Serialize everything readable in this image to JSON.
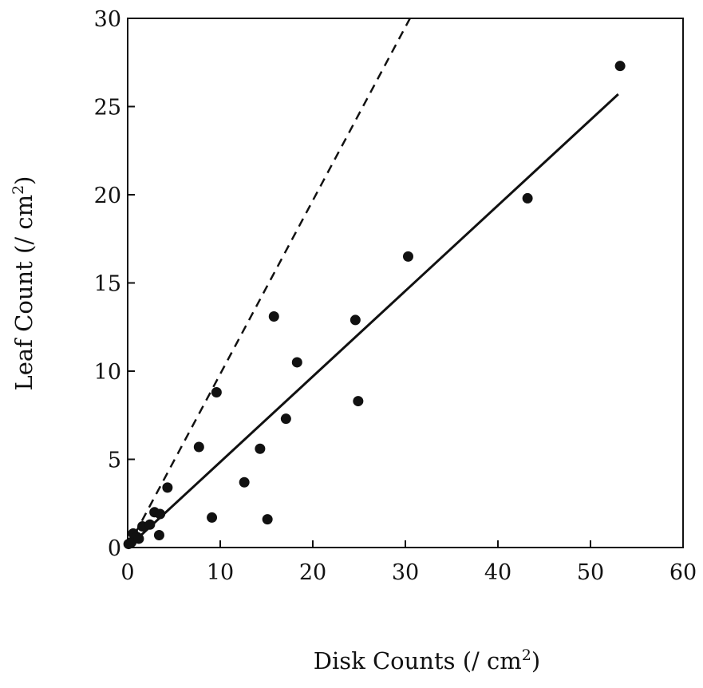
{
  "chart_data": {
    "type": "scatter",
    "title": "",
    "xlabel": "Disk Counts (/ cm",
    "xlabel_sup": "2",
    "xlabel_end": ")",
    "ylabel": "Leaf Count (/ cm",
    "ylabel_sup": "2",
    "ylabel_end": ")",
    "xlim": [
      0,
      60
    ],
    "ylim": [
      0,
      30
    ],
    "xticks": [
      "0",
      "10",
      "20",
      "30",
      "40",
      "50",
      "60"
    ],
    "yticks": [
      "0",
      "5",
      "10",
      "15",
      "20",
      "25",
      "30"
    ],
    "grid": false,
    "points": [
      {
        "x": 0.1,
        "y": 0.2
      },
      {
        "x": 0.4,
        "y": 0.3
      },
      {
        "x": 0.6,
        "y": 0.8
      },
      {
        "x": 1.0,
        "y": 0.6
      },
      {
        "x": 1.2,
        "y": 0.5
      },
      {
        "x": 1.6,
        "y": 1.2
      },
      {
        "x": 2.4,
        "y": 1.3
      },
      {
        "x": 2.9,
        "y": 2.0
      },
      {
        "x": 3.4,
        "y": 0.7
      },
      {
        "x": 3.5,
        "y": 1.9
      },
      {
        "x": 4.3,
        "y": 3.4
      },
      {
        "x": 7.7,
        "y": 5.7
      },
      {
        "x": 9.1,
        "y": 1.7
      },
      {
        "x": 9.6,
        "y": 8.8
      },
      {
        "x": 12.6,
        "y": 3.7
      },
      {
        "x": 14.3,
        "y": 5.6
      },
      {
        "x": 15.1,
        "y": 1.6
      },
      {
        "x": 15.8,
        "y": 13.1
      },
      {
        "x": 17.1,
        "y": 7.3
      },
      {
        "x": 18.3,
        "y": 10.5
      },
      {
        "x": 24.6,
        "y": 12.9
      },
      {
        "x": 24.9,
        "y": 8.3
      },
      {
        "x": 30.3,
        "y": 16.5
      },
      {
        "x": 43.2,
        "y": 19.8
      },
      {
        "x": 53.2,
        "y": 27.3
      }
    ],
    "lines": [
      {
        "style": "solid",
        "x": [
          0,
          53
        ],
        "y": [
          0,
          25.7
        ]
      },
      {
        "style": "dashed",
        "x": [
          0,
          30.5
        ],
        "y": [
          0,
          30
        ]
      }
    ]
  }
}
